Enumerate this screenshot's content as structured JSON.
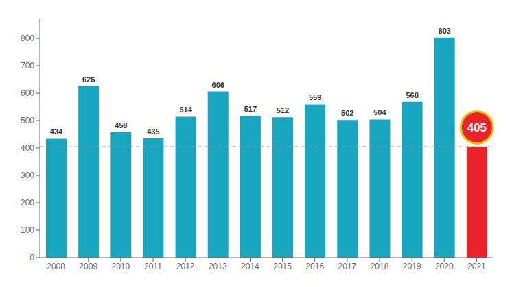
{
  "chart_data": {
    "type": "bar",
    "categories": [
      "2008",
      "2009",
      "2010",
      "2011",
      "2012",
      "2013",
      "2014",
      "2015",
      "2016",
      "2017",
      "2018",
      "2019",
      "2020",
      "2021"
    ],
    "values": [
      434,
      626,
      458,
      435,
      514,
      606,
      517,
      512,
      559,
      502,
      504,
      568,
      803,
      405
    ],
    "colors": [
      "#18a5bf",
      "#18a5bf",
      "#18a5bf",
      "#18a5bf",
      "#18a5bf",
      "#18a5bf",
      "#18a5bf",
      "#18a5bf",
      "#18a5bf",
      "#18a5bf",
      "#18a5bf",
      "#18a5bf",
      "#18a5bf",
      "#e8242a"
    ],
    "ylim": [
      0,
      870
    ],
    "yticks": [
      0,
      100,
      200,
      300,
      400,
      500,
      600,
      700,
      800
    ],
    "reference_line": 405,
    "data_labels": true,
    "grid": false
  }
}
